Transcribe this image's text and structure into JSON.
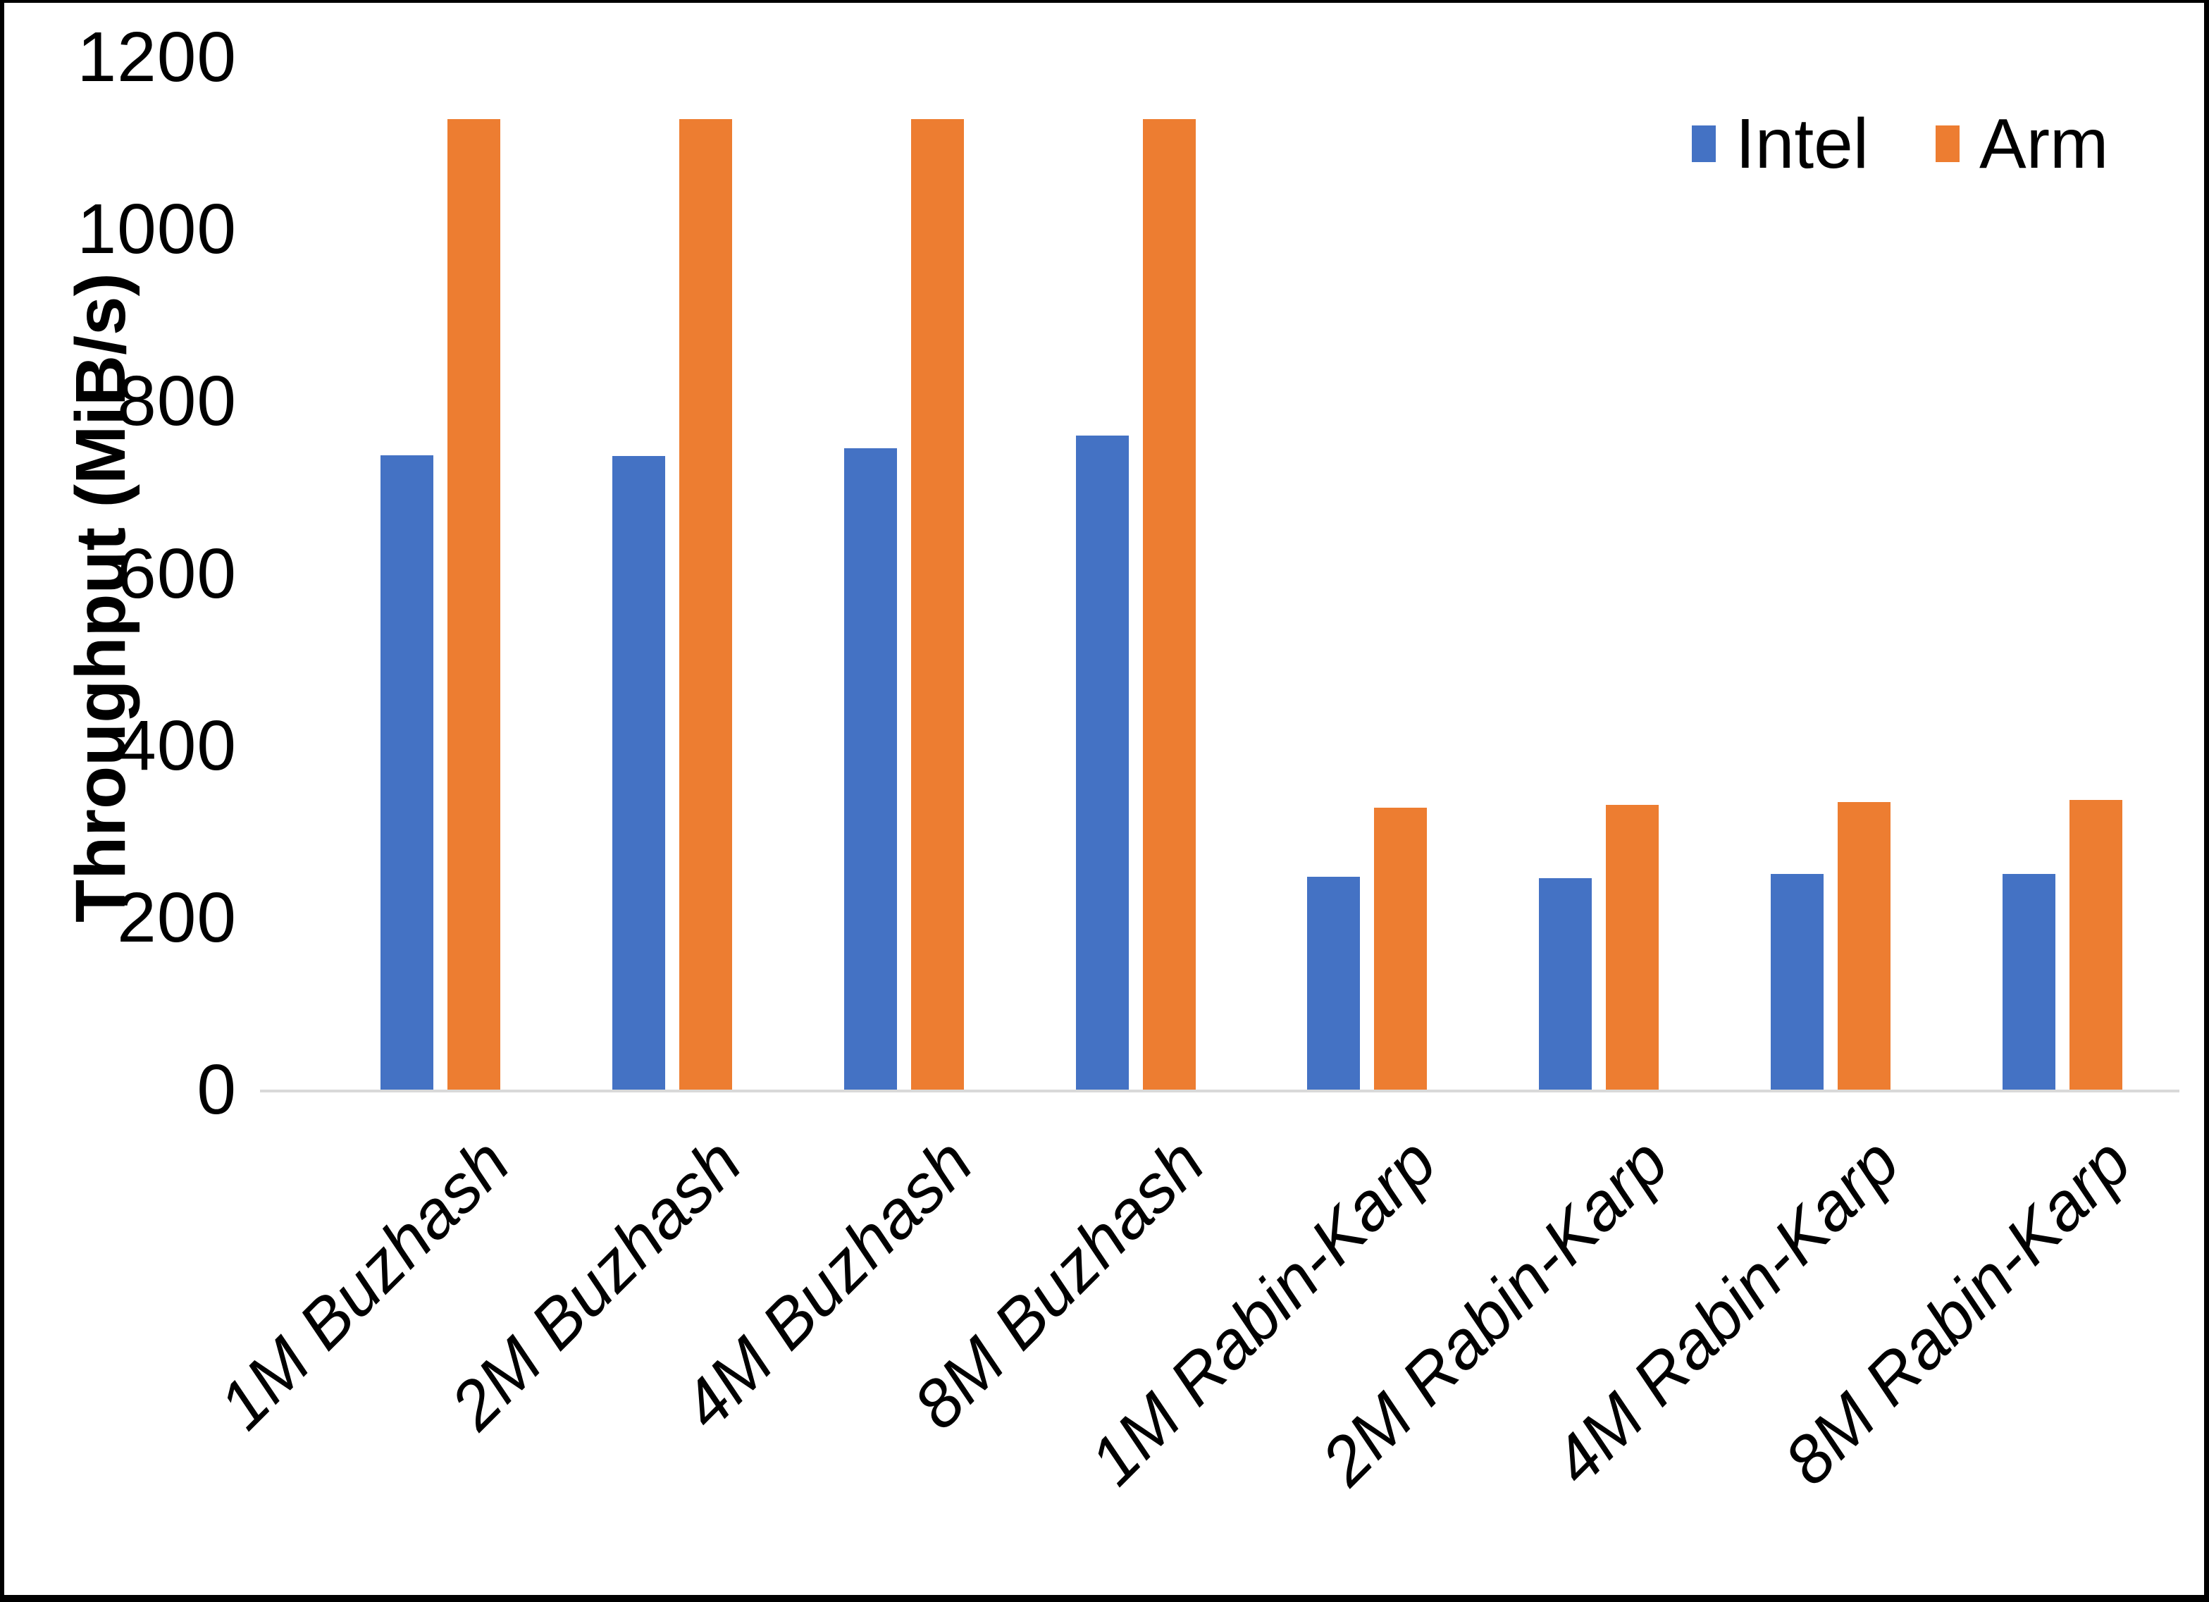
{
  "chart_data": {
    "type": "bar",
    "title": "",
    "ylabel": "Throughput (MiB/s)",
    "xlabel": "",
    "ylim": [
      0,
      1200
    ],
    "yticks": [
      0,
      200,
      400,
      600,
      800,
      1000,
      1200
    ],
    "grid": false,
    "legend_position": "top-right",
    "categories": [
      "1M Buzhash",
      "2M Buzhash",
      "4M Buzhash",
      "8M Buzhash",
      "1M Rabin-Karp",
      "2M Rabin-Karp",
      "4M Rabin-Karp",
      "8M Rabin-Karp"
    ],
    "series": [
      {
        "name": "Intel",
        "color": "#4472C4",
        "values": [
          737,
          736,
          745,
          760,
          247,
          246,
          251,
          251
        ]
      },
      {
        "name": "Arm",
        "color": "#ED7D31",
        "values": [
          1128,
          1128,
          1128,
          1128,
          328,
          331,
          334,
          337
        ]
      }
    ]
  },
  "colors": {
    "axis_line": "#D9D9D9",
    "text": "#000000",
    "background": "#FFFFFF",
    "frame_border": "#000000"
  }
}
